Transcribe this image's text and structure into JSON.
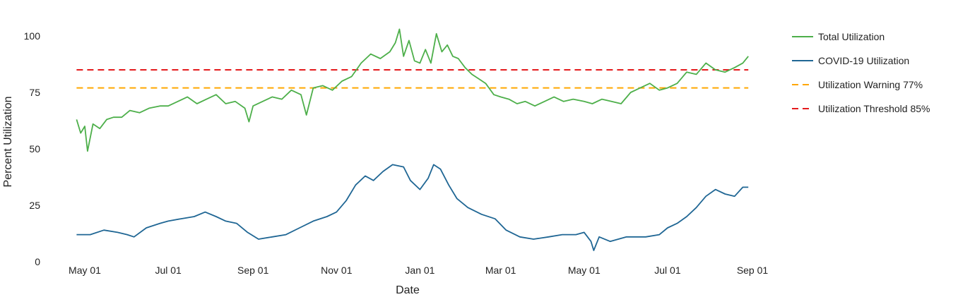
{
  "chart_data": {
    "type": "line",
    "title": "",
    "xlabel": "Date",
    "ylabel": "Percent Utilization",
    "xlim": [
      "2020-04-25",
      "2021-08-29"
    ],
    "ylim": [
      0,
      105
    ],
    "grid": false,
    "legend_position": "right",
    "x_ticks": [
      {
        "date": "2020-05-01",
        "label": "May 01"
      },
      {
        "date": "2020-07-01",
        "label": "Jul 01"
      },
      {
        "date": "2020-09-01",
        "label": "Sep 01"
      },
      {
        "date": "2020-11-01",
        "label": "Nov 01"
      },
      {
        "date": "2021-01-01",
        "label": "Jan 01"
      },
      {
        "date": "2021-03-01",
        "label": "Mar 01"
      },
      {
        "date": "2021-05-01",
        "label": "May 01"
      },
      {
        "date": "2021-07-01",
        "label": "Jul 01"
      },
      {
        "date": "2021-09-01",
        "label": "Sep 01"
      }
    ],
    "y_ticks": [
      {
        "value": 0,
        "label": "0"
      },
      {
        "value": 25,
        "label": "25"
      },
      {
        "value": 50,
        "label": "50"
      },
      {
        "value": 75,
        "label": "75"
      },
      {
        "value": 100,
        "label": "100"
      }
    ],
    "series": [
      {
        "name": "Total Utilization",
        "color": "#4daf4a",
        "style": "solid",
        "points": [
          [
            "2020-04-25",
            63
          ],
          [
            "2020-04-28",
            57
          ],
          [
            "2020-05-01",
            60
          ],
          [
            "2020-05-03",
            49
          ],
          [
            "2020-05-07",
            61
          ],
          [
            "2020-05-12",
            59
          ],
          [
            "2020-05-17",
            63
          ],
          [
            "2020-05-22",
            64
          ],
          [
            "2020-05-28",
            64
          ],
          [
            "2020-06-03",
            67
          ],
          [
            "2020-06-10",
            66
          ],
          [
            "2020-06-17",
            68
          ],
          [
            "2020-06-25",
            69
          ],
          [
            "2020-07-01",
            69
          ],
          [
            "2020-07-08",
            71
          ],
          [
            "2020-07-15",
            73
          ],
          [
            "2020-07-22",
            70
          ],
          [
            "2020-07-29",
            72
          ],
          [
            "2020-08-05",
            74
          ],
          [
            "2020-08-12",
            70
          ],
          [
            "2020-08-19",
            71
          ],
          [
            "2020-08-26",
            68
          ],
          [
            "2020-08-29",
            62
          ],
          [
            "2020-09-01",
            69
          ],
          [
            "2020-09-08",
            71
          ],
          [
            "2020-09-15",
            73
          ],
          [
            "2020-09-22",
            72
          ],
          [
            "2020-09-29",
            76
          ],
          [
            "2020-10-06",
            74
          ],
          [
            "2020-10-10",
            65
          ],
          [
            "2020-10-15",
            77
          ],
          [
            "2020-10-22",
            78
          ],
          [
            "2020-10-29",
            76
          ],
          [
            "2020-11-05",
            80
          ],
          [
            "2020-11-12",
            82
          ],
          [
            "2020-11-19",
            88
          ],
          [
            "2020-11-26",
            92
          ],
          [
            "2020-12-03",
            90
          ],
          [
            "2020-12-10",
            93
          ],
          [
            "2020-12-14",
            97
          ],
          [
            "2020-12-17",
            103
          ],
          [
            "2020-12-20",
            91
          ],
          [
            "2020-12-24",
            98
          ],
          [
            "2020-12-28",
            89
          ],
          [
            "2021-01-01",
            88
          ],
          [
            "2021-01-05",
            94
          ],
          [
            "2021-01-09",
            88
          ],
          [
            "2021-01-13",
            101
          ],
          [
            "2021-01-17",
            93
          ],
          [
            "2021-01-21",
            96
          ],
          [
            "2021-01-25",
            91
          ],
          [
            "2021-01-29",
            90
          ],
          [
            "2021-02-03",
            86
          ],
          [
            "2021-02-08",
            83
          ],
          [
            "2021-02-13",
            81
          ],
          [
            "2021-02-18",
            79
          ],
          [
            "2021-02-24",
            74
          ],
          [
            "2021-03-01",
            73
          ],
          [
            "2021-03-07",
            72
          ],
          [
            "2021-03-13",
            70
          ],
          [
            "2021-03-19",
            71
          ],
          [
            "2021-03-26",
            69
          ],
          [
            "2021-04-02",
            71
          ],
          [
            "2021-04-09",
            73
          ],
          [
            "2021-04-16",
            71
          ],
          [
            "2021-04-23",
            72
          ],
          [
            "2021-05-01",
            71
          ],
          [
            "2021-05-07",
            70
          ],
          [
            "2021-05-14",
            72
          ],
          [
            "2021-05-21",
            71
          ],
          [
            "2021-05-28",
            70
          ],
          [
            "2021-06-04",
            75
          ],
          [
            "2021-06-11",
            77
          ],
          [
            "2021-06-18",
            79
          ],
          [
            "2021-06-25",
            76
          ],
          [
            "2021-07-01",
            77
          ],
          [
            "2021-07-08",
            79
          ],
          [
            "2021-07-15",
            84
          ],
          [
            "2021-07-22",
            83
          ],
          [
            "2021-07-29",
            88
          ],
          [
            "2021-08-05",
            85
          ],
          [
            "2021-08-12",
            84
          ],
          [
            "2021-08-19",
            86
          ],
          [
            "2021-08-25",
            88
          ],
          [
            "2021-08-29",
            91
          ]
        ]
      },
      {
        "name": "COVID-19 Utilization",
        "color": "#1f6694",
        "style": "solid",
        "points": [
          [
            "2020-04-25",
            12
          ],
          [
            "2020-05-05",
            12
          ],
          [
            "2020-05-15",
            14
          ],
          [
            "2020-05-25",
            13
          ],
          [
            "2020-06-01",
            12
          ],
          [
            "2020-06-06",
            11
          ],
          [
            "2020-06-15",
            15
          ],
          [
            "2020-06-25",
            17
          ],
          [
            "2020-07-01",
            18
          ],
          [
            "2020-07-10",
            19
          ],
          [
            "2020-07-20",
            20
          ],
          [
            "2020-07-28",
            22
          ],
          [
            "2020-08-05",
            20
          ],
          [
            "2020-08-12",
            18
          ],
          [
            "2020-08-20",
            17
          ],
          [
            "2020-08-28",
            13
          ],
          [
            "2020-09-05",
            10
          ],
          [
            "2020-09-15",
            11
          ],
          [
            "2020-09-25",
            12
          ],
          [
            "2020-10-05",
            15
          ],
          [
            "2020-10-15",
            18
          ],
          [
            "2020-10-25",
            20
          ],
          [
            "2020-11-01",
            22
          ],
          [
            "2020-11-08",
            27
          ],
          [
            "2020-11-15",
            34
          ],
          [
            "2020-11-22",
            38
          ],
          [
            "2020-11-28",
            36
          ],
          [
            "2020-12-05",
            40
          ],
          [
            "2020-12-12",
            43
          ],
          [
            "2020-12-20",
            42
          ],
          [
            "2020-12-25",
            36
          ],
          [
            "2021-01-01",
            32
          ],
          [
            "2021-01-07",
            37
          ],
          [
            "2021-01-11",
            43
          ],
          [
            "2021-01-16",
            41
          ],
          [
            "2021-01-22",
            34
          ],
          [
            "2021-01-28",
            28
          ],
          [
            "2021-02-05",
            24
          ],
          [
            "2021-02-15",
            21
          ],
          [
            "2021-02-25",
            19
          ],
          [
            "2021-03-05",
            14
          ],
          [
            "2021-03-15",
            11
          ],
          [
            "2021-03-25",
            10
          ],
          [
            "2021-04-05",
            11
          ],
          [
            "2021-04-15",
            12
          ],
          [
            "2021-04-25",
            12
          ],
          [
            "2021-05-01",
            13
          ],
          [
            "2021-05-06",
            9
          ],
          [
            "2021-05-08",
            5
          ],
          [
            "2021-05-12",
            11
          ],
          [
            "2021-05-20",
            9
          ],
          [
            "2021-06-01",
            11
          ],
          [
            "2021-06-15",
            11
          ],
          [
            "2021-06-25",
            12
          ],
          [
            "2021-07-01",
            15
          ],
          [
            "2021-07-08",
            17
          ],
          [
            "2021-07-15",
            20
          ],
          [
            "2021-07-22",
            24
          ],
          [
            "2021-07-29",
            29
          ],
          [
            "2021-08-05",
            32
          ],
          [
            "2021-08-12",
            30
          ],
          [
            "2021-08-19",
            29
          ],
          [
            "2021-08-25",
            33
          ],
          [
            "2021-08-29",
            33
          ]
        ]
      },
      {
        "name": "Utilization Warning 77%",
        "color": "#ffa600",
        "style": "dashed",
        "points": [
          [
            "2020-04-25",
            77
          ],
          [
            "2021-08-29",
            77
          ]
        ]
      },
      {
        "name": "Utilization Threshold 85%",
        "color": "#e41a1c",
        "style": "dashed",
        "points": [
          [
            "2020-04-25",
            85
          ],
          [
            "2021-08-29",
            85
          ]
        ]
      }
    ]
  }
}
